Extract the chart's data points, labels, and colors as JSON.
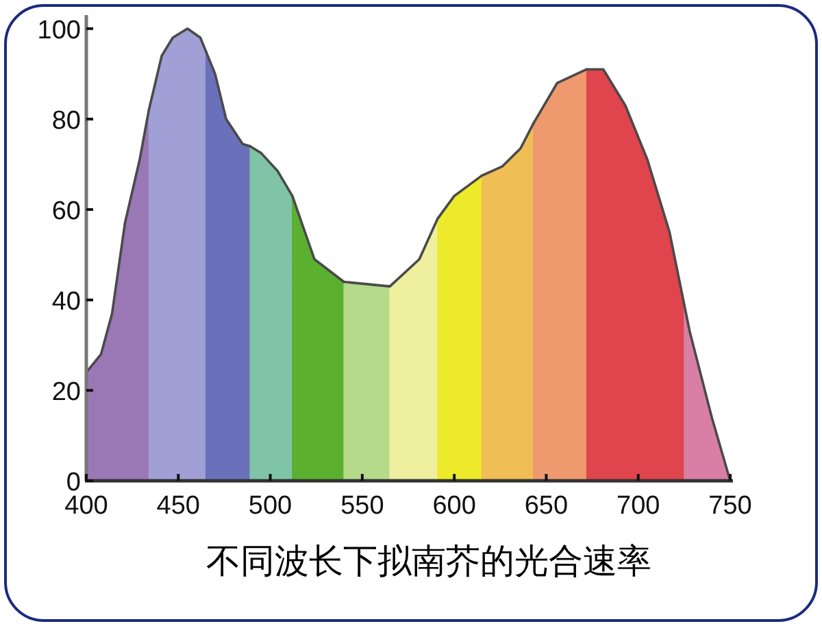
{
  "chart_data": {
    "type": "area",
    "title": "不同波长下拟南芥的光合速率",
    "xlim": [
      400,
      750
    ],
    "ylim": [
      0,
      103
    ],
    "xticks": [
      400,
      450,
      500,
      550,
      600,
      650,
      700,
      750
    ],
    "yticks": [
      0,
      20,
      40,
      60,
      80,
      100
    ],
    "grid": false,
    "series": [
      {
        "type": "area",
        "color": "#9a77b5",
        "x": [
          400,
          408,
          414,
          421,
          429,
          434
        ],
        "values": [
          24,
          28,
          37,
          57,
          71,
          82
        ]
      },
      {
        "type": "area",
        "color": "#a09fd6",
        "x": [
          434,
          441,
          447,
          455,
          462,
          465
        ],
        "values": [
          82,
          94,
          98,
          100,
          98,
          95
        ]
      },
      {
        "type": "area",
        "color": "#6b70bb",
        "x": [
          465,
          470,
          476,
          485,
          489
        ],
        "values": [
          95,
          90,
          80,
          74.5,
          74
        ]
      },
      {
        "type": "area",
        "color": "#7fc4a6",
        "x": [
          489,
          495,
          504,
          512
        ],
        "values": [
          74,
          72.5,
          68.5,
          63
        ]
      },
      {
        "type": "area",
        "color": "#5bb030",
        "x": [
          512,
          524,
          540
        ],
        "values": [
          63,
          49,
          44
        ]
      },
      {
        "type": "area",
        "color": "#b5da8a",
        "x": [
          540,
          565
        ],
        "values": [
          44,
          43
        ]
      },
      {
        "type": "area",
        "color": "#eeef9f",
        "x": [
          565,
          581,
          591
        ],
        "values": [
          43,
          49,
          58
        ]
      },
      {
        "type": "area",
        "color": "#ecea2a",
        "x": [
          591,
          600,
          615
        ],
        "values": [
          58,
          63,
          67.5
        ]
      },
      {
        "type": "area",
        "color": "#efbe55",
        "x": [
          615,
          626,
          636,
          643
        ],
        "values": [
          67.5,
          69.5,
          73.5,
          79
        ]
      },
      {
        "type": "area",
        "color": "#ee9a6e",
        "x": [
          643,
          656,
          672
        ],
        "values": [
          79,
          88,
          91
        ]
      },
      {
        "type": "area",
        "color": "#e0444c",
        "x": [
          672,
          681,
          693,
          705,
          717,
          725
        ],
        "values": [
          91,
          91,
          83,
          71,
          55,
          39
        ]
      },
      {
        "type": "area",
        "color": "#d97fa5",
        "x": [
          725,
          728,
          740,
          750
        ],
        "values": [
          39,
          33,
          14,
          0
        ]
      }
    ]
  }
}
